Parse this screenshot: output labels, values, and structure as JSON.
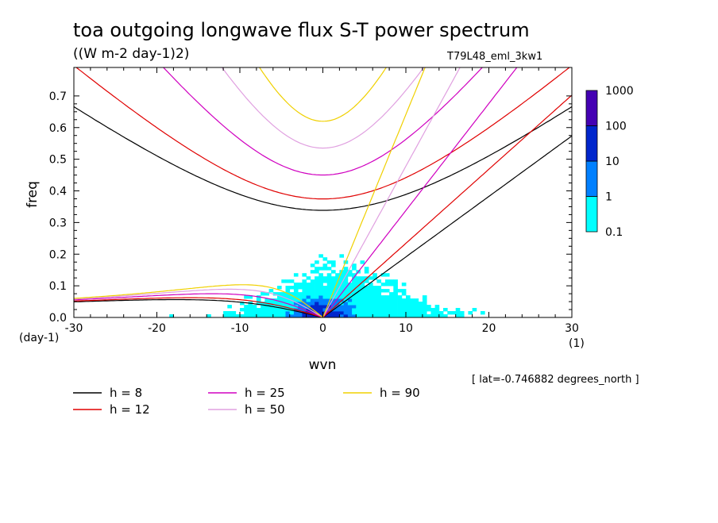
{
  "header": {
    "title": "toa outgoing longwave flux S-T power spectrum",
    "units": "((W m-2 day-1)2)",
    "run": "T79L48_eml_3kw1",
    "lat_note": "[ lat=-0.746882 degrees_north ]"
  },
  "chart_data": {
    "type": "heatmap",
    "xlabel": "wvn",
    "ylabel": "freq",
    "x_unit": "(1)",
    "y_unit": "(day-1)",
    "xlim": [
      -30,
      30
    ],
    "ylim": [
      0,
      0.79
    ],
    "xticks": [
      -30,
      -20,
      -10,
      0,
      10,
      20,
      30
    ],
    "yticks": [
      0.0,
      0.1,
      0.2,
      0.3,
      0.4,
      0.5,
      0.6,
      0.7
    ],
    "xtick_labels": [
      "-30",
      "-20",
      "-10",
      "0",
      "10",
      "20",
      "30"
    ],
    "ytick_labels": [
      "0.0",
      "0.1",
      "0.2",
      "0.3",
      "0.4",
      "0.5",
      "0.6",
      "0.7"
    ],
    "colorbar": {
      "levels": [
        "0.1",
        "1",
        "10",
        "100",
        "1000"
      ],
      "colors": [
        "#00ffff",
        "#0080ff",
        "#0026cc",
        "#4400b3"
      ]
    },
    "dispersion_curves": [
      {
        "h": 8,
        "label": "h =  8",
        "color": "#000000"
      },
      {
        "h": 12,
        "label": "h = 12",
        "color": "#e00000"
      },
      {
        "h": 25,
        "label": "h = 25",
        "color": "#d000c0"
      },
      {
        "h": 50,
        "label": "h = 50",
        "color": "#e0a0e0"
      },
      {
        "h": 90,
        "label": "h = 90",
        "color": "#f0d000"
      }
    ]
  }
}
